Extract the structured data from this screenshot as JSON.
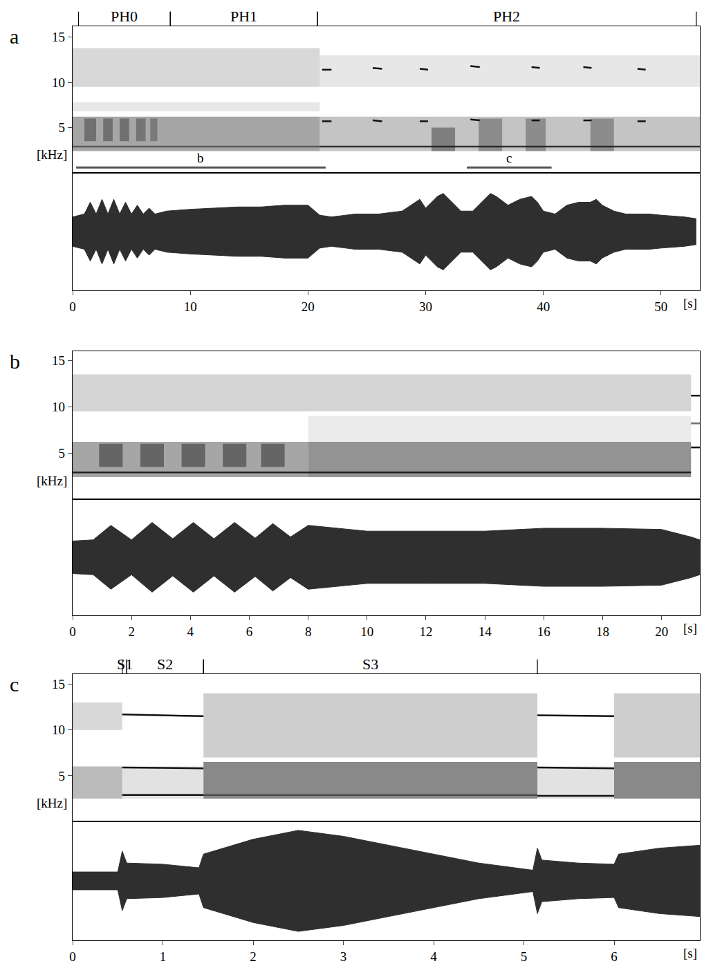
{
  "chart_data": [
    {
      "type": "spectrogram",
      "panel": "a",
      "ylabel": "[kHz]",
      "xlim": [
        0,
        53.3
      ],
      "ylim": [
        0,
        16.2
      ],
      "yticks": [
        5,
        10,
        15
      ],
      "tick_labels": "y",
      "color": "#3a3a3a",
      "segments": [
        {
          "label": "PH0",
          "x0": 0.5,
          "x1": 8.3
        },
        {
          "label": "PH1",
          "x0": 8.3,
          "x1": 20.8
        },
        {
          "label": "PH2",
          "x0": 20.8,
          "x1": 53.0
        }
      ],
      "markers": [
        {
          "label": "b",
          "x0": 0.3,
          "x1": 21.5,
          "y": 0.6
        },
        {
          "label": "c",
          "x0": 33.5,
          "x1": 40.7,
          "y": 0.6
        }
      ],
      "bands": [
        {
          "x0": 0,
          "x1": 21,
          "y0": 2.4,
          "y1": 6.2,
          "level": 0.45
        },
        {
          "x0": 0,
          "x1": 21,
          "y0": 9.5,
          "y1": 13.8,
          "level": 0.2
        },
        {
          "x0": 0,
          "x1": 21,
          "y0": 6.8,
          "y1": 7.8,
          "level": 0.12
        },
        {
          "x0": 1,
          "x1": 2,
          "y0": 3.5,
          "y1": 6,
          "level": 0.5
        },
        {
          "x0": 2.6,
          "x1": 3.4,
          "y0": 3.5,
          "y1": 6,
          "level": 0.5
        },
        {
          "x0": 4,
          "x1": 4.8,
          "y0": 3.5,
          "y1": 6,
          "level": 0.5
        },
        {
          "x0": 5.4,
          "x1": 6.2,
          "y0": 3.5,
          "y1": 6,
          "level": 0.45
        },
        {
          "x0": 6.6,
          "x1": 7.2,
          "y0": 3.5,
          "y1": 6,
          "level": 0.4
        },
        {
          "x0": 21,
          "x1": 53.3,
          "y0": 2.4,
          "y1": 6.2,
          "level": 0.3
        },
        {
          "x0": 21,
          "x1": 53.3,
          "y0": 9.5,
          "y1": 13,
          "level": 0.12
        },
        {
          "x0": 30.5,
          "x1": 32.5,
          "y0": 2.4,
          "y1": 5,
          "level": 0.5
        },
        {
          "x0": 34.5,
          "x1": 36.5,
          "y0": 2.4,
          "y1": 6,
          "level": 0.4
        },
        {
          "x0": 38.5,
          "x1": 40.2,
          "y0": 2.4,
          "y1": 6,
          "level": 0.4
        },
        {
          "x0": 44,
          "x1": 46,
          "y0": 2.4,
          "y1": 6,
          "level": 0.4
        }
      ],
      "tones": [
        {
          "x0": 0,
          "x1": 21,
          "y0": 2.9,
          "y1": 2.9,
          "level": 0.5
        },
        {
          "x0": 21,
          "x1": 53.3,
          "y0": 2.9,
          "y1": 2.9,
          "level": 0.8
        },
        {
          "x0": 21.2,
          "x1": 22,
          "y0": 11.4,
          "y1": 11.4,
          "level": 1
        },
        {
          "x0": 21.2,
          "x1": 22,
          "y0": 5.7,
          "y1": 5.7,
          "level": 1
        },
        {
          "x0": 25.5,
          "x1": 26.3,
          "y0": 11.6,
          "y1": 11.5,
          "level": 1
        },
        {
          "x0": 25.5,
          "x1": 26.3,
          "y0": 5.8,
          "y1": 5.7,
          "level": 1
        },
        {
          "x0": 29.5,
          "x1": 30.2,
          "y0": 11.5,
          "y1": 11.4,
          "level": 1
        },
        {
          "x0": 29.5,
          "x1": 30.2,
          "y0": 5.7,
          "y1": 5.7,
          "level": 1
        },
        {
          "x0": 33.8,
          "x1": 34.6,
          "y0": 11.8,
          "y1": 11.7,
          "level": 1
        },
        {
          "x0": 33.8,
          "x1": 34.6,
          "y0": 5.9,
          "y1": 5.8,
          "level": 1
        },
        {
          "x0": 39,
          "x1": 39.7,
          "y0": 11.7,
          "y1": 11.6,
          "level": 1
        },
        {
          "x0": 39,
          "x1": 39.7,
          "y0": 5.8,
          "y1": 5.8,
          "level": 1
        },
        {
          "x0": 43.4,
          "x1": 44.1,
          "y0": 11.7,
          "y1": 11.6,
          "level": 1
        },
        {
          "x0": 43.4,
          "x1": 44.1,
          "y0": 5.8,
          "y1": 5.8,
          "level": 1
        },
        {
          "x0": 48,
          "x1": 48.7,
          "y0": 11.5,
          "y1": 11.4,
          "level": 1
        },
        {
          "x0": 48,
          "x1": 48.7,
          "y0": 5.7,
          "y1": 5.7,
          "level": 1
        }
      ]
    },
    {
      "type": "waveform",
      "panel": "a",
      "xlabel": "[s]",
      "xlim": [
        0,
        53.3
      ],
      "xticks": [
        0,
        10,
        20,
        30,
        40,
        50
      ],
      "ylim": [
        -1,
        1
      ],
      "tick_labels": "x",
      "color": "#2f2f2f",
      "x": [
        0,
        1,
        1.5,
        2,
        2.5,
        3,
        3.5,
        4,
        4.5,
        5,
        5.5,
        6,
        6.5,
        7,
        8,
        10,
        12,
        14,
        16,
        18,
        20,
        21,
        22,
        24,
        26,
        28,
        29.5,
        30,
        31,
        31.5,
        32,
        33,
        34,
        35,
        35.5,
        36,
        37,
        38,
        39,
        39.5,
        40,
        41,
        42,
        43,
        44,
        44.5,
        45,
        46,
        47,
        48,
        49,
        50,
        52,
        53
      ],
      "values": [
        0.25,
        0.3,
        0.5,
        0.3,
        0.55,
        0.3,
        0.55,
        0.3,
        0.5,
        0.3,
        0.45,
        0.3,
        0.4,
        0.3,
        0.35,
        0.38,
        0.4,
        0.42,
        0.42,
        0.45,
        0.45,
        0.28,
        0.25,
        0.3,
        0.3,
        0.35,
        0.55,
        0.4,
        0.6,
        0.65,
        0.55,
        0.35,
        0.35,
        0.55,
        0.65,
        0.6,
        0.45,
        0.55,
        0.6,
        0.5,
        0.35,
        0.3,
        0.45,
        0.5,
        0.5,
        0.55,
        0.45,
        0.35,
        0.3,
        0.3,
        0.3,
        0.28,
        0.25,
        0.22
      ]
    },
    {
      "type": "spectrogram",
      "panel": "b",
      "ylabel": "[kHz]",
      "xlim": [
        0,
        21.3
      ],
      "ylim": [
        0,
        16
      ],
      "yticks": [
        5,
        10,
        15
      ],
      "tick_labels": "y",
      "color": "#3a3a3a",
      "bands": [
        {
          "x0": 0,
          "x1": 8,
          "y0": 2.4,
          "y1": 6.2,
          "level": 0.45
        },
        {
          "x0": 0.9,
          "x1": 1.7,
          "y0": 3.5,
          "y1": 6,
          "level": 0.6
        },
        {
          "x0": 2.3,
          "x1": 3.1,
          "y0": 3.5,
          "y1": 6,
          "level": 0.6
        },
        {
          "x0": 3.7,
          "x1": 4.5,
          "y0": 3.5,
          "y1": 6,
          "level": 0.6
        },
        {
          "x0": 5.1,
          "x1": 5.9,
          "y0": 3.5,
          "y1": 6,
          "level": 0.6
        },
        {
          "x0": 6.4,
          "x1": 7.2,
          "y0": 3.5,
          "y1": 6,
          "level": 0.6
        },
        {
          "x0": 8,
          "x1": 21,
          "y0": 2.4,
          "y1": 6.2,
          "level": 0.55
        },
        {
          "x0": 0,
          "x1": 21,
          "y0": 9.5,
          "y1": 13.5,
          "level": 0.22
        },
        {
          "x0": 8,
          "x1": 21,
          "y0": 6.2,
          "y1": 9,
          "level": 0.1
        }
      ],
      "tones": [
        {
          "x0": 0,
          "x1": 21,
          "y0": 2.9,
          "y1": 2.9,
          "level": 0.9
        },
        {
          "x0": 21,
          "x1": 21.3,
          "y0": 11.2,
          "y1": 11.2,
          "level": 1
        },
        {
          "x0": 21,
          "x1": 21.3,
          "y0": 8.2,
          "y1": 8.2,
          "level": 0.6
        },
        {
          "x0": 21,
          "x1": 21.3,
          "y0": 5.6,
          "y1": 5.6,
          "level": 1
        }
      ]
    },
    {
      "type": "waveform",
      "panel": "b",
      "xlabel": "[s]",
      "xlim": [
        0,
        21.3
      ],
      "xticks": [
        0,
        2,
        4,
        6,
        8,
        10,
        12,
        14,
        16,
        18,
        20
      ],
      "ylim": [
        -1,
        1
      ],
      "tick_labels": "x",
      "color": "#2f2f2f",
      "x": [
        0,
        0.7,
        1.3,
        2,
        2.7,
        3.4,
        4.1,
        4.8,
        5.5,
        6.2,
        6.8,
        7.4,
        8,
        9,
        10,
        12,
        14,
        16,
        18,
        20,
        21,
        21.3
      ],
      "values": [
        0.28,
        0.3,
        0.55,
        0.3,
        0.6,
        0.32,
        0.6,
        0.32,
        0.6,
        0.33,
        0.58,
        0.35,
        0.55,
        0.5,
        0.45,
        0.45,
        0.45,
        0.5,
        0.5,
        0.48,
        0.35,
        0.3
      ]
    },
    {
      "type": "spectrogram",
      "panel": "c",
      "ylabel": "[kHz]",
      "xlim": [
        0,
        6.95
      ],
      "ylim": [
        0,
        16.1
      ],
      "yticks": [
        5,
        10,
        15
      ],
      "tick_labels": "y",
      "color": "#3a3a3a",
      "segments": [
        {
          "label": "S1",
          "x0": 0.55,
          "x1": 0.6
        },
        {
          "label": "S2",
          "x0": 0.6,
          "x1": 1.45
        },
        {
          "label": "S3",
          "x0": 1.45,
          "x1": 5.15
        }
      ],
      "bands": [
        {
          "x0": 0,
          "x1": 0.55,
          "y0": 2.5,
          "y1": 6,
          "level": 0.35
        },
        {
          "x0": 0,
          "x1": 0.55,
          "y0": 10,
          "y1": 13,
          "level": 0.2
        },
        {
          "x0": 0.55,
          "x1": 1.45,
          "y0": 2.5,
          "y1": 6,
          "level": 0.15
        },
        {
          "x0": 1.45,
          "x1": 5.15,
          "y0": 2.5,
          "y1": 6.5,
          "level": 0.6
        },
        {
          "x0": 1.45,
          "x1": 5.15,
          "y0": 7,
          "y1": 14,
          "level": 0.25
        },
        {
          "x0": 5.15,
          "x1": 6,
          "y0": 2.5,
          "y1": 6,
          "level": 0.15
        },
        {
          "x0": 6,
          "x1": 6.95,
          "y0": 2.5,
          "y1": 6.5,
          "level": 0.6
        },
        {
          "x0": 6,
          "x1": 6.95,
          "y0": 7,
          "y1": 14,
          "level": 0.25
        }
      ],
      "tones": [
        {
          "x0": 0.55,
          "x1": 1.45,
          "y0": 11.7,
          "y1": 11.5,
          "level": 1
        },
        {
          "x0": 0.55,
          "x1": 1.45,
          "y0": 5.9,
          "y1": 5.8,
          "level": 1
        },
        {
          "x0": 0.55,
          "x1": 1.45,
          "y0": 2.9,
          "y1": 2.9,
          "level": 1
        },
        {
          "x0": 1.45,
          "x1": 5.15,
          "y0": 2.9,
          "y1": 2.9,
          "level": 0.5
        },
        {
          "x0": 5.15,
          "x1": 6,
          "y0": 11.6,
          "y1": 11.5,
          "level": 1
        },
        {
          "x0": 5.15,
          "x1": 6,
          "y0": 5.9,
          "y1": 5.8,
          "level": 1
        },
        {
          "x0": 5.15,
          "x1": 6,
          "y0": 2.8,
          "y1": 2.8,
          "level": 1
        }
      ]
    },
    {
      "type": "waveform",
      "panel": "c",
      "xlabel": "[s]",
      "xlim": [
        0,
        6.95
      ],
      "xticks": [
        0,
        1,
        2,
        3,
        4,
        5,
        6
      ],
      "ylim": [
        -1,
        1
      ],
      "tick_labels": "x",
      "color": "#2f2f2f",
      "x": [
        0,
        0.5,
        0.55,
        0.6,
        1,
        1.4,
        1.45,
        2,
        2.5,
        3,
        3.5,
        4,
        4.5,
        5,
        5.1,
        5.15,
        5.2,
        5.6,
        6,
        6.05,
        6.5,
        6.95
      ],
      "values": [
        0.15,
        0.15,
        0.5,
        0.3,
        0.28,
        0.22,
        0.45,
        0.7,
        0.85,
        0.75,
        0.6,
        0.45,
        0.3,
        0.2,
        0.18,
        0.55,
        0.35,
        0.3,
        0.28,
        0.45,
        0.55,
        0.6
      ]
    }
  ]
}
